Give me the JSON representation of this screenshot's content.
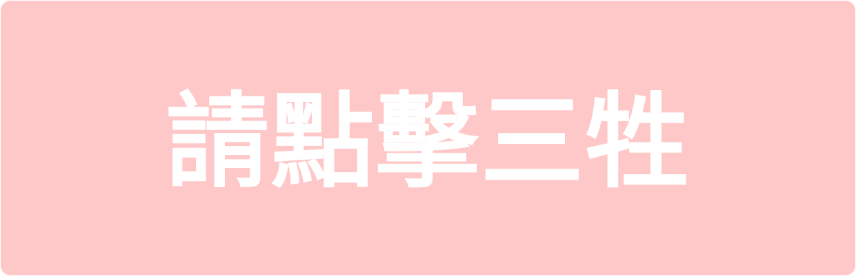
{
  "button": {
    "label": "請點擊三牲"
  },
  "colors": {
    "button_background": "#ffc8c8",
    "label_text": "#ffffff",
    "page_background": "#ffffff"
  }
}
